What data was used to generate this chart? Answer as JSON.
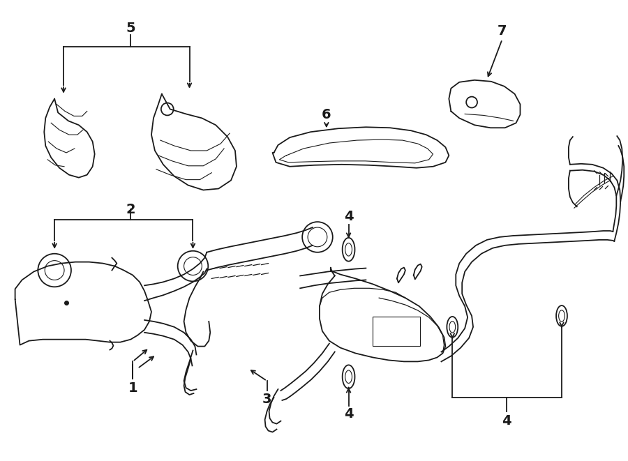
{
  "bg_color": "#ffffff",
  "line_color": "#1a1a1a",
  "fig_width": 9.0,
  "fig_height": 6.61,
  "dpi": 100,
  "label_fontsize": 13
}
